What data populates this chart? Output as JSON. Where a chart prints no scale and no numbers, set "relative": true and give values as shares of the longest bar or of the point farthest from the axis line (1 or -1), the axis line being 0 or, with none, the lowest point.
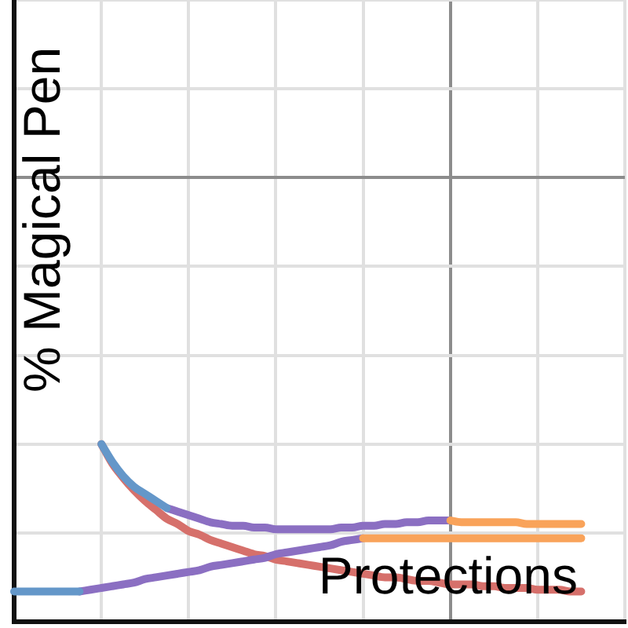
{
  "chart_data": {
    "type": "line",
    "xlabel": "Protections",
    "ylabel": "% Magical Pen",
    "relative": true,
    "grid": true,
    "tick_labels": false,
    "categories": [
      null,
      null,
      null,
      null,
      null,
      null,
      null,
      null,
      null,
      null,
      null,
      null,
      null,
      null,
      null,
      null,
      null,
      null,
      null,
      null,
      null,
      null,
      null,
      null,
      null,
      null,
      null,
      null,
      null,
      null,
      null,
      null,
      null,
      null,
      null,
      null,
      null,
      null,
      null,
      null,
      null,
      null,
      null,
      null,
      null,
      null,
      null,
      null,
      null,
      null,
      null,
      null,
      null,
      null,
      null,
      null,
      null
    ],
    "series": [
      {
        "color": "#6497c9",
        "values": [
          0.17,
          0.17,
          0.17,
          0.17,
          0.17,
          0.17,
          0.17,
          null,
          null,
          null,
          null,
          null,
          null,
          null,
          null,
          null,
          null,
          null,
          null,
          null,
          null,
          null,
          null,
          null,
          null,
          null,
          null,
          null,
          null,
          null,
          null,
          null,
          null,
          null,
          null,
          null,
          null,
          null,
          null,
          null,
          null,
          null,
          null,
          null,
          null,
          null,
          null,
          null,
          null,
          null,
          null,
          null,
          null,
          null,
          null,
          null,
          null
        ]
      },
      {
        "color": "#6497c9",
        "values": [
          null,
          null,
          null,
          null,
          null,
          null,
          null,
          null,
          1.0,
          0.9,
          0.82,
          0.76,
          0.72,
          0.68,
          0.64,
          null,
          null,
          null,
          null,
          null,
          null,
          null,
          null,
          null,
          null,
          null,
          null,
          null,
          null,
          null,
          null,
          null,
          null,
          null,
          null,
          null,
          null,
          null,
          null,
          null,
          null,
          null,
          null,
          null,
          null,
          null,
          null,
          null,
          null,
          null,
          null,
          null,
          null,
          null,
          null,
          null,
          null
        ]
      },
      {
        "color": "#f9a35a",
        "values": [
          null,
          null,
          null,
          null,
          null,
          null,
          null,
          null,
          null,
          null,
          null,
          null,
          null,
          null,
          null,
          null,
          null,
          null,
          null,
          null,
          null,
          null,
          null,
          null,
          null,
          null,
          null,
          null,
          null,
          null,
          null,
          null,
          null,
          null,
          null,
          null,
          null,
          null,
          null,
          null,
          0.57,
          0.56,
          0.56,
          0.56,
          0.56,
          0.56,
          0.56,
          0.55,
          0.55,
          0.55,
          0.55,
          0.55,
          0.55,
          null,
          null,
          null,
          null
        ]
      },
      {
        "color": "#f9a35a",
        "values": [
          null,
          null,
          null,
          null,
          null,
          null,
          null,
          null,
          null,
          null,
          null,
          null,
          null,
          null,
          null,
          null,
          null,
          null,
          null,
          null,
          null,
          null,
          null,
          null,
          null,
          null,
          null,
          null,
          null,
          null,
          null,
          null,
          0.47,
          0.47,
          0.47,
          0.47,
          0.47,
          0.47,
          0.47,
          0.47,
          0.47,
          0.47,
          0.47,
          0.47,
          0.47,
          0.47,
          0.47,
          0.47,
          0.47,
          0.47,
          0.47,
          0.47,
          0.47,
          null,
          null,
          null,
          null
        ]
      },
      {
        "color": "#8b6fc2",
        "values": [
          null,
          null,
          null,
          null,
          null,
          null,
          null,
          null,
          null,
          null,
          null,
          null,
          null,
          null,
          0.64,
          0.62,
          0.6,
          0.58,
          0.56,
          0.55,
          0.54,
          0.54,
          0.53,
          0.53,
          0.52,
          0.52,
          0.52,
          0.52,
          0.52,
          0.52,
          0.53,
          0.53,
          0.54,
          0.54,
          0.55,
          0.55,
          0.56,
          0.56,
          0.57,
          0.57,
          0.57,
          null,
          null,
          null,
          null,
          null,
          null,
          null,
          null,
          null,
          null,
          null,
          null,
          null,
          null,
          null,
          null
        ]
      },
      {
        "color": "#8b6fc2",
        "values": [
          null,
          null,
          null,
          null,
          null,
          null,
          0.17,
          0.18,
          0.19,
          0.2,
          0.21,
          0.22,
          0.24,
          0.25,
          0.26,
          0.27,
          0.28,
          0.29,
          0.31,
          0.32,
          0.33,
          0.34,
          0.35,
          0.36,
          0.38,
          0.39,
          0.4,
          0.41,
          0.42,
          0.43,
          0.45,
          0.46,
          0.47,
          null,
          null,
          null,
          null,
          null,
          null,
          null,
          null,
          null,
          null,
          null,
          null,
          null,
          null,
          null,
          null,
          null,
          null,
          null,
          null,
          null,
          null,
          null,
          null
        ]
      },
      {
        "color": "#d6706b",
        "values": [
          null,
          null,
          null,
          null,
          null,
          null,
          null,
          null,
          1.0,
          0.89,
          0.81,
          0.74,
          0.68,
          0.63,
          0.58,
          0.55,
          0.51,
          0.49,
          0.46,
          0.44,
          0.42,
          0.4,
          0.38,
          0.37,
          0.35,
          0.34,
          0.33,
          0.32,
          0.31,
          0.3,
          0.29,
          0.28,
          0.27,
          0.26,
          0.25,
          0.25,
          0.24,
          0.23,
          0.23,
          0.22,
          0.21,
          0.21,
          0.21,
          0.2,
          0.2,
          0.19,
          0.19,
          0.19,
          0.18,
          0.18,
          0.18,
          0.17,
          0.17,
          null,
          null,
          null,
          null
        ]
      }
    ]
  }
}
